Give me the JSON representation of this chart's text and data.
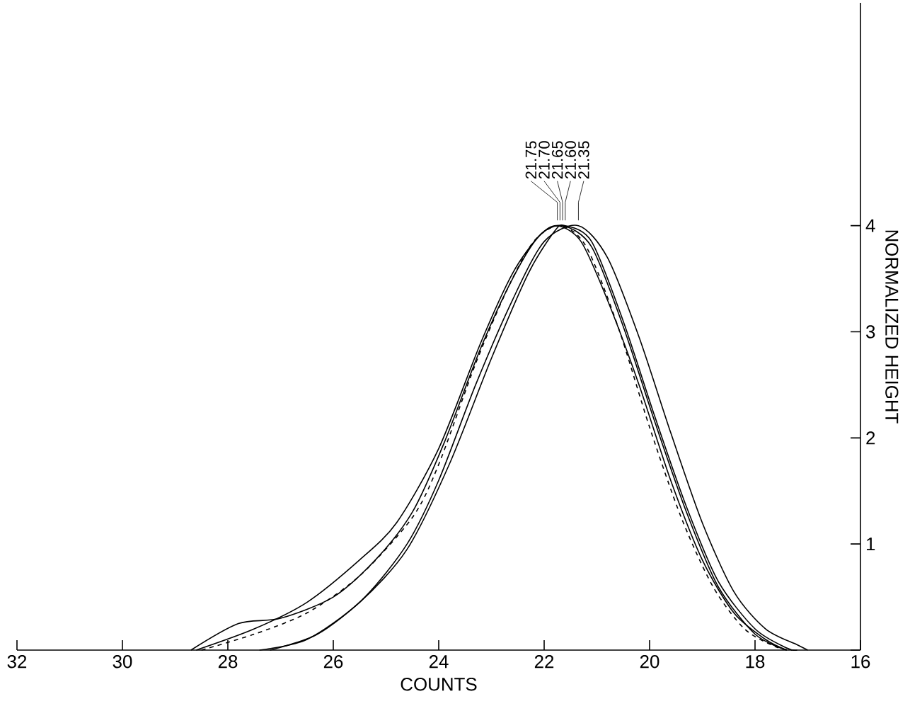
{
  "chart_data": {
    "type": "line",
    "xlabel": "COUNTS",
    "ylabel": "NORMALIZED HEIGHT",
    "x": [
      28.6,
      27.5,
      26.5,
      25.5,
      24.8,
      24,
      23.2,
      22.6,
      22.1,
      21.75,
      21.3,
      20.8,
      20.2,
      19.6,
      19,
      18.4,
      17.8,
      17.4
    ],
    "series": [
      {
        "color": "#000000",
        "line_style": "solid",
        "values": [
          0,
          0.2,
          0.45,
          0.85,
          1.2,
          1.9,
          2.9,
          3.55,
          3.9,
          4,
          3.85,
          3.3,
          2.5,
          1.6,
          0.85,
          0.35,
          0.1,
          0
        ]
      },
      {
        "color": "#000000",
        "line_style": "dashed",
        "x": [
          28.5,
          27.5,
          26.5,
          25.5,
          24.5,
          24,
          23.3,
          22.7,
          22.2,
          21.7,
          21.2,
          20.6,
          20,
          19.4,
          18.8,
          18.2,
          17.6,
          17.3
        ],
        "values": [
          0,
          0.15,
          0.35,
          0.7,
          1.25,
          1.75,
          2.7,
          3.4,
          3.85,
          4,
          3.8,
          3.05,
          2.1,
          1.25,
          0.6,
          0.2,
          0.03,
          0
        ]
      },
      {
        "color": "#000000",
        "line_style": "solid",
        "x": [
          28.7,
          27.8,
          27,
          26,
          25.2,
          24.5,
          23.9,
          23.2,
          22.6,
          22.1,
          21.65,
          21.1,
          20.5,
          19.9,
          19.3,
          18.7,
          18,
          17.4
        ],
        "values": [
          0,
          0.25,
          0.3,
          0.5,
          0.85,
          1.3,
          1.95,
          2.85,
          3.5,
          3.9,
          4,
          3.8,
          3.05,
          2.15,
          1.3,
          0.6,
          0.15,
          0
        ]
      },
      {
        "color": "#000000",
        "line_style": "solid",
        "x": [
          27.4,
          26.5,
          25.5,
          24.6,
          23.8,
          23,
          22.3,
          21.8,
          21.6,
          21.1,
          20.5,
          19.9,
          19.3,
          18.7,
          18,
          17.4,
          17.2
        ],
        "values": [
          0,
          0.1,
          0.45,
          0.95,
          1.75,
          2.75,
          3.55,
          3.95,
          4,
          3.85,
          3.1,
          2.2,
          1.35,
          0.65,
          0.2,
          0.02,
          0
        ]
      },
      {
        "color": "#000000",
        "line_style": "solid",
        "x": [
          27.2,
          26.3,
          25.4,
          24.6,
          24,
          23.3,
          22.6,
          22,
          21.35,
          20.8,
          20.2,
          19.6,
          19,
          18.4,
          17.8,
          17.2,
          17
        ],
        "values": [
          0,
          0.15,
          0.5,
          1.0,
          1.6,
          2.5,
          3.3,
          3.85,
          4,
          3.7,
          2.95,
          2.05,
          1.2,
          0.55,
          0.2,
          0.05,
          0
        ]
      }
    ],
    "annotations": [
      {
        "text": "21.75",
        "x": 21.75,
        "y": 4
      },
      {
        "text": "21.70",
        "x": 21.7,
        "y": 4
      },
      {
        "text": "21.65",
        "x": 21.65,
        "y": 4
      },
      {
        "text": "21.60",
        "x": 21.6,
        "y": 4
      },
      {
        "text": "21.35",
        "x": 21.35,
        "y": 4
      }
    ],
    "xlim": [
      32,
      16
    ],
    "xticks": [
      32,
      30,
      28,
      26,
      24,
      22,
      20,
      18,
      16
    ],
    "ylim": [
      0,
      6.1
    ],
    "yticks": [
      {
        "value": 0,
        "label": null
      },
      1,
      2,
      3,
      4
    ],
    "marker": "none"
  }
}
